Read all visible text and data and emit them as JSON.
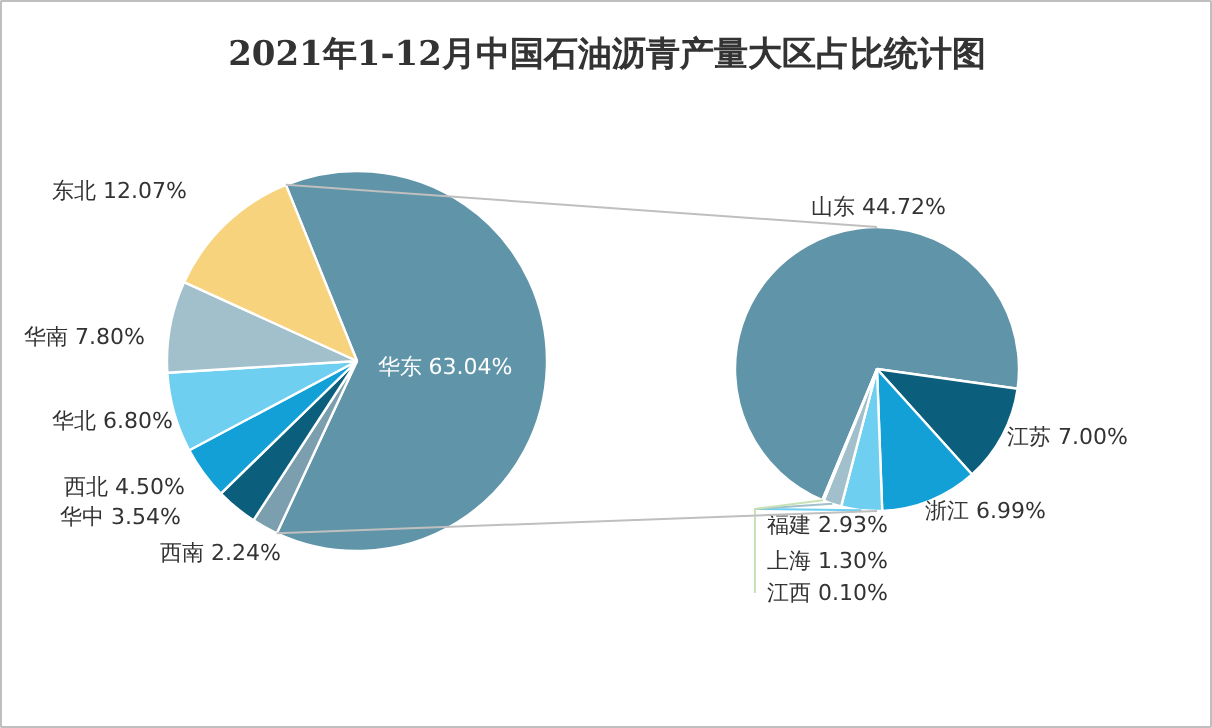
{
  "chart_data": [
    {
      "type": "pie",
      "title": "2021年1-12月中国石油沥青产量大区占比统计图",
      "categories": [
        "华东",
        "西南",
        "华中",
        "西北",
        "华北",
        "华南",
        "东北"
      ],
      "values": [
        63.04,
        2.24,
        3.54,
        4.5,
        6.8,
        7.8,
        12.07
      ],
      "value_labels": [
        "63.04%",
        "2.24%",
        "3.54%",
        "4.50%",
        "6.80%",
        "7.80%",
        "12.07%"
      ],
      "colors": [
        "#6094a9",
        "#7c9fb0",
        "#0b5e7c",
        "#12a0d7",
        "#6ecff0",
        "#a2c0cc",
        "#f6d37c"
      ]
    },
    {
      "type": "pie",
      "categories": [
        "山东",
        "江苏",
        "浙江",
        "福建",
        "上海",
        "江西"
      ],
      "values": [
        44.72,
        7.0,
        6.99,
        2.93,
        1.3,
        0.1
      ],
      "value_labels": [
        "44.72%",
        "7.00%",
        "6.99%",
        "2.93%",
        "1.30%",
        "0.10%"
      ],
      "colors": [
        "#6094a9",
        "#0b5e7c",
        "#12a0d7",
        "#6ecff0",
        "#a2c0cc",
        "#c8e2b8"
      ]
    }
  ]
}
